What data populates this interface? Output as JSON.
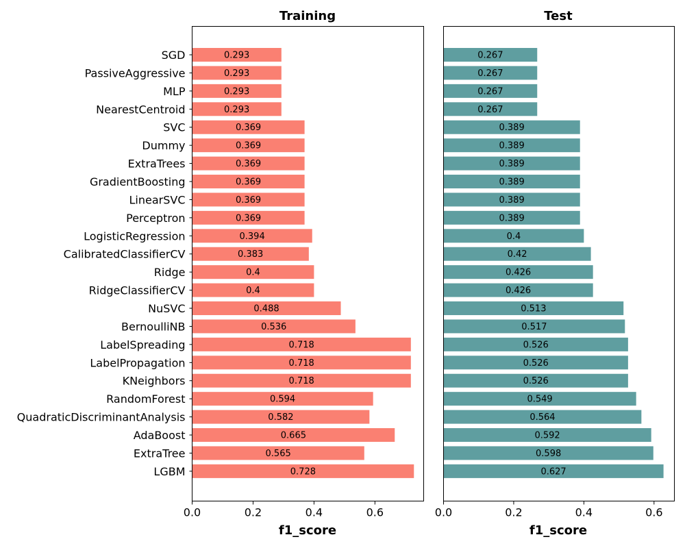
{
  "chart_data": [
    {
      "type": "bar",
      "orientation": "horizontal",
      "title": "Training",
      "xlabel": "f1_score",
      "ylabel": "",
      "xlim": [
        0,
        0.76
      ],
      "xticks": [
        "0.0",
        "0.2",
        "0.4",
        "0.6"
      ],
      "bar_color": "#fa8072",
      "categories": [
        "SGD",
        "PassiveAggressive",
        "MLP",
        "NearestCentroid",
        "SVC",
        "Dummy",
        "ExtraTrees",
        "GradientBoosting",
        "LinearSVC",
        "Perceptron",
        "LogisticRegression",
        "CalibratedClassifierCV",
        "Ridge",
        "RidgeClassifierCV",
        "NuSVC",
        "BernoulliNB",
        "LabelSpreading",
        "LabelPropagation",
        "KNeighbors",
        "RandomForest",
        "QuadraticDiscriminantAnalysis",
        "AdaBoost",
        "ExtraTree",
        "LGBM"
      ],
      "values": [
        0.293,
        0.293,
        0.293,
        0.293,
        0.369,
        0.369,
        0.369,
        0.369,
        0.369,
        0.369,
        0.394,
        0.383,
        0.4,
        0.4,
        0.488,
        0.536,
        0.718,
        0.718,
        0.718,
        0.594,
        0.582,
        0.665,
        0.565,
        0.728
      ],
      "labels": [
        "0.293",
        "0.293",
        "0.293",
        "0.293",
        "0.369",
        "0.369",
        "0.369",
        "0.369",
        "0.369",
        "0.369",
        "0.394",
        "0.383",
        "0.4",
        "0.4",
        "0.488",
        "0.536",
        "0.718",
        "0.718",
        "0.718",
        "0.594",
        "0.582",
        "0.665",
        "0.565",
        "0.728"
      ]
    },
    {
      "type": "bar",
      "orientation": "horizontal",
      "title": "Test",
      "xlabel": "f1_score",
      "ylabel": "",
      "xlim": [
        0,
        0.658
      ],
      "xticks": [
        "0.0",
        "0.2",
        "0.4",
        "0.6"
      ],
      "bar_color": "#5f9ea0",
      "categories": [
        "SGD",
        "PassiveAggressive",
        "MLP",
        "NearestCentroid",
        "SVC",
        "Dummy",
        "ExtraTrees",
        "GradientBoosting",
        "LinearSVC",
        "Perceptron",
        "LogisticRegression",
        "CalibratedClassifierCV",
        "Ridge",
        "RidgeClassifierCV",
        "NuSVC",
        "BernoulliNB",
        "LabelSpreading",
        "LabelPropagation",
        "KNeighbors",
        "RandomForest",
        "QuadraticDiscriminantAnalysis",
        "AdaBoost",
        "ExtraTree",
        "LGBM"
      ],
      "values": [
        0.267,
        0.267,
        0.267,
        0.267,
        0.389,
        0.389,
        0.389,
        0.389,
        0.389,
        0.389,
        0.4,
        0.42,
        0.426,
        0.426,
        0.513,
        0.517,
        0.526,
        0.526,
        0.526,
        0.549,
        0.564,
        0.592,
        0.598,
        0.627
      ],
      "labels": [
        "0.267",
        "0.267",
        "0.267",
        "0.267",
        "0.389",
        "0.389",
        "0.389",
        "0.389",
        "0.389",
        "0.389",
        "0.4",
        "0.42",
        "0.426",
        "0.426",
        "0.513",
        "0.517",
        "0.526",
        "0.526",
        "0.526",
        "0.549",
        "0.564",
        "0.592",
        "0.598",
        "0.627"
      ]
    }
  ]
}
